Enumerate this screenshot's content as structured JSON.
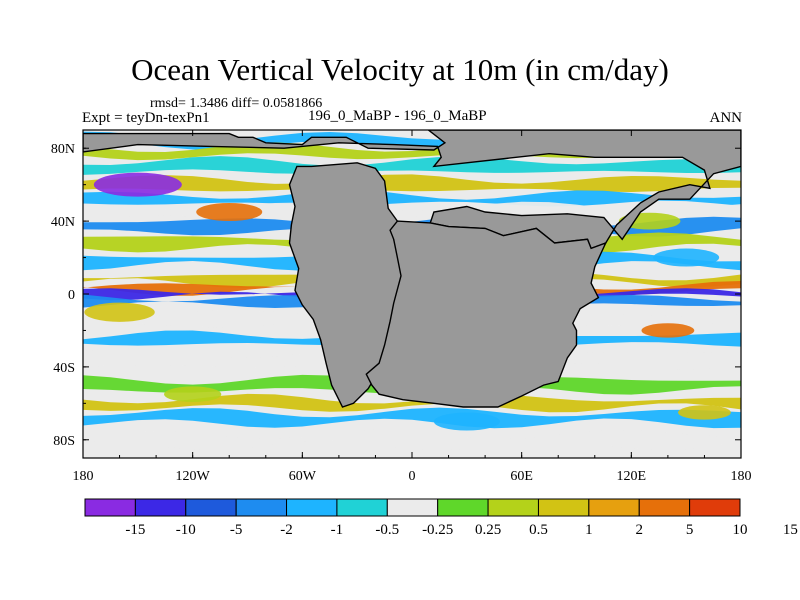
{
  "header": {
    "title": "Ocean Vertical Velocity at 10m (in cm/day)",
    "stats": "rmsd= 1.3486 diff= 0.0581866",
    "experiment": "Expt = teyDn-texPn1",
    "case": "196_0_MaBP - 196_0_MaBP",
    "season": "ANN"
  },
  "colors": {
    "land": "#999999",
    "palette": [
      "#8a2be2",
      "#3c28e6",
      "#1e5adc",
      "#1e8cf0",
      "#1eb4ff",
      "#20d2d6",
      "#ebebeb",
      "#5fd72a",
      "#b4d21a",
      "#d2c314",
      "#e6a00f",
      "#e6700a",
      "#e03c0a"
    ]
  },
  "chart_data": {
    "type": "heatmap",
    "title": "Ocean Vertical Velocity at 10m (in cm/day)",
    "units": "cm/day",
    "xlim": [
      -180,
      180
    ],
    "ylim": [
      -90,
      90
    ],
    "x_ticks": [
      {
        "value": -180,
        "label": "180"
      },
      {
        "value": -120,
        "label": "120W"
      },
      {
        "value": -60,
        "label": "60W"
      },
      {
        "value": 0,
        "label": "0"
      },
      {
        "value": 60,
        "label": "60E"
      },
      {
        "value": 120,
        "label": "120E"
      },
      {
        "value": 180,
        "label": "180"
      }
    ],
    "y_ticks": [
      {
        "value": 80,
        "label": "80N"
      },
      {
        "value": 40,
        "label": "40N"
      },
      {
        "value": 0,
        "label": "0"
      },
      {
        "value": -40,
        "label": "40S"
      },
      {
        "value": -80,
        "label": "80S"
      }
    ],
    "colorbar_levels": [
      "-15",
      "-10",
      "-5",
      "-2",
      "-1",
      "-0.5",
      "-0.25",
      "0.25",
      "0.5",
      "1",
      "2",
      "5",
      "10",
      "15"
    ],
    "continents": [
      {
        "name": "western-continent",
        "lonlat": [
          [
            -63,
            70
          ],
          [
            -55,
            70
          ],
          [
            -30,
            72
          ],
          [
            -20,
            69
          ],
          [
            -15,
            62
          ],
          [
            -13,
            47
          ],
          [
            -8,
            40
          ],
          [
            -10,
            30
          ],
          [
            -6,
            20
          ],
          [
            -5,
            8
          ],
          [
            -4,
            -2
          ],
          [
            -6,
            -12
          ],
          [
            -8,
            -22
          ],
          [
            -12,
            -32
          ],
          [
            -18,
            -42
          ],
          [
            -24,
            -52
          ],
          [
            -32,
            -60
          ],
          [
            -38,
            -62
          ],
          [
            -44,
            -50
          ],
          [
            -47,
            -38
          ],
          [
            -50,
            -25
          ],
          [
            -54,
            -14
          ],
          [
            -60,
            -6
          ],
          [
            -64,
            2
          ],
          [
            -62,
            14
          ],
          [
            -67,
            28
          ],
          [
            -66,
            38
          ],
          [
            -64,
            48
          ],
          [
            -67,
            60
          ]
        ]
      },
      {
        "name": "eastern-continent",
        "lonlat": [
          [
            10,
            39
          ],
          [
            12,
            45
          ],
          [
            30,
            48
          ],
          [
            40,
            45
          ],
          [
            60,
            43
          ],
          [
            85,
            44
          ],
          [
            105,
            42
          ],
          [
            115,
            30
          ],
          [
            125,
            45
          ],
          [
            135,
            52
          ],
          [
            152,
            52
          ],
          [
            165,
            66
          ],
          [
            180,
            70
          ],
          [
            180,
            90
          ],
          [
            9,
            90
          ],
          [
            18,
            83
          ],
          [
            12,
            79
          ],
          [
            -24,
            80
          ],
          [
            -36,
            86
          ],
          [
            -55,
            86
          ],
          [
            -60,
            82
          ],
          [
            -80,
            83
          ],
          [
            -87,
            86
          ],
          [
            -95,
            86
          ],
          [
            -100,
            88
          ],
          [
            -180,
            88
          ],
          [
            -180,
            78
          ],
          [
            -150,
            82
          ],
          [
            -110,
            81
          ],
          [
            -70,
            80
          ],
          [
            -40,
            83
          ],
          [
            -10,
            82
          ],
          [
            14,
            81
          ],
          [
            16,
            75
          ],
          [
            12,
            70
          ],
          [
            75,
            77
          ],
          [
            100,
            75
          ],
          [
            148,
            75
          ],
          [
            160,
            68
          ],
          [
            163,
            58
          ],
          [
            152,
            60
          ],
          [
            135,
            56
          ],
          [
            125,
            50
          ],
          [
            112,
            38
          ],
          [
            106,
            28
          ],
          [
            98,
            25
          ],
          [
            96,
            30
          ],
          [
            78,
            28
          ],
          [
            68,
            36
          ],
          [
            50,
            32
          ],
          [
            40,
            36
          ],
          [
            20,
            37
          ],
          [
            10,
            39
          ]
        ]
      },
      {
        "name": "southern-block",
        "lonlat": [
          [
            -12,
            35
          ],
          [
            -8,
            40
          ],
          [
            10,
            39
          ],
          [
            20,
            37
          ],
          [
            40,
            36
          ],
          [
            50,
            32
          ],
          [
            68,
            36
          ],
          [
            78,
            28
          ],
          [
            96,
            30
          ],
          [
            98,
            25
          ],
          [
            106,
            28
          ],
          [
            100,
            15
          ],
          [
            98,
            6
          ],
          [
            102,
            -2
          ],
          [
            92,
            -8
          ],
          [
            88,
            -16
          ],
          [
            90,
            -20
          ],
          [
            90,
            -28
          ],
          [
            85,
            -35
          ],
          [
            80,
            -48
          ],
          [
            72,
            -50
          ],
          [
            60,
            -56
          ],
          [
            47,
            -62
          ],
          [
            28,
            -62
          ],
          [
            12,
            -60
          ],
          [
            -5,
            -58
          ],
          [
            -18,
            -55
          ],
          [
            -22,
            -50
          ],
          [
            -25,
            -44
          ],
          [
            -18,
            -38
          ],
          [
            -15,
            -28
          ],
          [
            -12,
            -15
          ],
          [
            -10,
            -5
          ],
          [
            -6,
            10
          ],
          [
            -8,
            20
          ],
          [
            -10,
            30
          ]
        ]
      }
    ],
    "bands": [
      {
        "lat": 84,
        "width": 5,
        "level": 4
      },
      {
        "lat": 78,
        "width": 5,
        "level": 8
      },
      {
        "lat": 70,
        "width": 6,
        "level": 5
      },
      {
        "lat": 60,
        "width": 6,
        "level": 9
      },
      {
        "lat": 52,
        "width": 5,
        "level": 4
      },
      {
        "lat": 45,
        "width": 6,
        "level": 6
      },
      {
        "lat": 37,
        "width": 6,
        "level": 3
      },
      {
        "lat": 28,
        "width": 6,
        "level": 8
      },
      {
        "lat": 18,
        "width": 5,
        "level": 4
      },
      {
        "lat": 8,
        "width": 4,
        "level": 9
      },
      {
        "lat": 3,
        "width": 3,
        "level": 11
      },
      {
        "lat": 0,
        "width": 2,
        "level": 1
      },
      {
        "lat": -4,
        "width": 4,
        "level": 3
      },
      {
        "lat": -14,
        "width": 6,
        "level": 6
      },
      {
        "lat": -25,
        "width": 5,
        "level": 4
      },
      {
        "lat": -36,
        "width": 7,
        "level": 6
      },
      {
        "lat": -50,
        "width": 6,
        "level": 7
      },
      {
        "lat": -60,
        "width": 5,
        "level": 9
      },
      {
        "lat": -68,
        "width": 6,
        "level": 4
      },
      {
        "lat": -80,
        "width": 6,
        "level": 6
      }
    ]
  }
}
